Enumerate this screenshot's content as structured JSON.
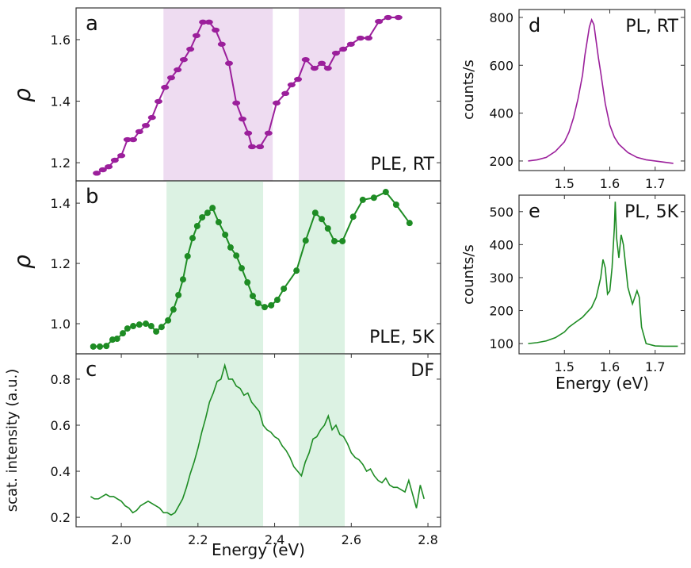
{
  "chart_data": [
    {
      "type": "line",
      "panel_label": "a",
      "annotation": "PLE, RT",
      "ylabel": "ρ",
      "markers": true,
      "color": "#9b1f9b",
      "x": [
        1.936,
        1.952,
        1.967,
        1.983,
        2.0,
        2.016,
        2.031,
        2.047,
        2.064,
        2.08,
        2.097,
        2.114,
        2.13,
        2.147,
        2.163,
        2.18,
        2.196,
        2.213,
        2.229,
        2.246,
        2.262,
        2.281,
        2.3,
        2.316,
        2.331,
        2.341,
        2.362,
        2.384,
        2.405,
        2.428,
        2.444,
        2.461,
        2.481,
        2.504,
        2.523,
        2.539,
        2.56,
        2.579,
        2.599,
        2.624,
        2.645,
        2.672,
        2.696,
        2.723
      ],
      "values": [
        1.166,
        1.177,
        1.187,
        1.208,
        1.223,
        1.275,
        1.275,
        1.301,
        1.321,
        1.347,
        1.399,
        1.445,
        1.476,
        1.502,
        1.535,
        1.569,
        1.613,
        1.657,
        1.657,
        1.631,
        1.585,
        1.523,
        1.394,
        1.342,
        1.296,
        1.252,
        1.252,
        1.296,
        1.394,
        1.425,
        1.453,
        1.471,
        1.535,
        1.507,
        1.523,
        1.507,
        1.556,
        1.569,
        1.585,
        1.605,
        1.605,
        1.659,
        1.672,
        1.672
      ],
      "xlim": [
        1.882,
        2.833
      ],
      "ylim": [
        1.141,
        1.703
      ],
      "yticks": [
        1.2,
        1.4,
        1.6
      ],
      "bands": [
        [
          2.11,
          2.395
        ],
        [
          2.463,
          2.583
        ]
      ],
      "band_color": "#eedcf1"
    },
    {
      "type": "line",
      "panel_label": "b",
      "annotation": "PLE, 5K",
      "ylabel": "ρ",
      "markers": true,
      "color": "#1e8c24",
      "x": [
        1.927,
        1.944,
        1.961,
        1.977,
        1.989,
        2.004,
        2.016,
        2.031,
        2.047,
        2.064,
        2.078,
        2.091,
        2.105,
        2.122,
        2.136,
        2.149,
        2.161,
        2.173,
        2.186,
        2.198,
        2.211,
        2.225,
        2.238,
        2.254,
        2.271,
        2.285,
        2.3,
        2.314,
        2.329,
        2.343,
        2.357,
        2.374,
        2.391,
        2.407,
        2.424,
        2.457,
        2.481,
        2.506,
        2.523,
        2.539,
        2.556,
        2.577,
        2.605,
        2.63,
        2.659,
        2.69,
        2.717,
        2.752
      ],
      "values": [
        0.924,
        0.924,
        0.926,
        0.947,
        0.95,
        0.968,
        0.984,
        0.992,
        0.997,
        1.0,
        0.992,
        0.974,
        0.989,
        1.011,
        1.047,
        1.095,
        1.147,
        1.224,
        1.284,
        1.324,
        1.353,
        1.368,
        1.384,
        1.337,
        1.295,
        1.253,
        1.226,
        1.184,
        1.137,
        1.092,
        1.068,
        1.055,
        1.061,
        1.079,
        1.116,
        1.176,
        1.276,
        1.368,
        1.347,
        1.316,
        1.274,
        1.274,
        1.355,
        1.411,
        1.418,
        1.437,
        1.395,
        1.334
      ],
      "xlim": [
        1.882,
        2.833
      ],
      "ylim": [
        0.9,
        1.474
      ],
      "yticks": [
        {
          "value": 1,
          "label": "1.0"
        },
        1.2,
        1.4
      ],
      "bands": [
        [
          2.118,
          2.37
        ],
        [
          2.463,
          2.583
        ]
      ],
      "band_color": "#dcf2e3"
    },
    {
      "type": "line",
      "panel_label": "c",
      "annotation": "DF",
      "ylabel": "scat. intensity (a.u.)",
      "xlabel": "Energy (eV)",
      "markers": false,
      "color": "#1e8c24",
      "x": [
        1.92,
        1.93,
        1.94,
        1.95,
        1.96,
        1.97,
        1.98,
        1.99,
        2.0,
        2.01,
        2.02,
        2.03,
        2.04,
        2.05,
        2.06,
        2.07,
        2.08,
        2.09,
        2.1,
        2.11,
        2.12,
        2.13,
        2.14,
        2.15,
        2.16,
        2.17,
        2.18,
        2.19,
        2.2,
        2.21,
        2.22,
        2.23,
        2.24,
        2.25,
        2.26,
        2.27,
        2.28,
        2.29,
        2.3,
        2.31,
        2.32,
        2.33,
        2.34,
        2.35,
        2.36,
        2.37,
        2.38,
        2.39,
        2.4,
        2.41,
        2.42,
        2.43,
        2.44,
        2.45,
        2.46,
        2.47,
        2.48,
        2.49,
        2.5,
        2.51,
        2.52,
        2.53,
        2.54,
        2.55,
        2.56,
        2.57,
        2.58,
        2.59,
        2.6,
        2.61,
        2.62,
        2.63,
        2.64,
        2.65,
        2.66,
        2.67,
        2.68,
        2.69,
        2.7,
        2.71,
        2.72,
        2.73,
        2.74,
        2.75,
        2.76,
        2.77,
        2.78,
        2.79
      ],
      "values": [
        0.29,
        0.28,
        0.28,
        0.29,
        0.3,
        0.29,
        0.29,
        0.28,
        0.27,
        0.25,
        0.24,
        0.22,
        0.23,
        0.25,
        0.26,
        0.27,
        0.26,
        0.25,
        0.24,
        0.22,
        0.22,
        0.21,
        0.22,
        0.25,
        0.28,
        0.33,
        0.39,
        0.44,
        0.5,
        0.57,
        0.63,
        0.7,
        0.74,
        0.79,
        0.8,
        0.86,
        0.8,
        0.8,
        0.77,
        0.76,
        0.73,
        0.74,
        0.7,
        0.68,
        0.66,
        0.6,
        0.58,
        0.57,
        0.55,
        0.54,
        0.51,
        0.49,
        0.46,
        0.42,
        0.4,
        0.38,
        0.44,
        0.48,
        0.54,
        0.55,
        0.58,
        0.6,
        0.64,
        0.58,
        0.6,
        0.56,
        0.55,
        0.52,
        0.48,
        0.46,
        0.45,
        0.43,
        0.4,
        0.41,
        0.38,
        0.36,
        0.35,
        0.37,
        0.34,
        0.33,
        0.33,
        0.32,
        0.31,
        0.36,
        0.3,
        0.24,
        0.34,
        0.28
      ],
      "xlim": [
        1.882,
        2.833
      ],
      "ylim": [
        0.159,
        0.91
      ],
      "yticks": [
        0.2,
        0.4,
        0.6,
        0.8
      ],
      "xticks": [
        {
          "value": 2,
          "label": "2.0"
        },
        2.2,
        2.4,
        2.6,
        2.8
      ],
      "bands": [
        [
          2.118,
          2.37
        ],
        [
          2.463,
          2.583
        ]
      ],
      "band_color": "#dcf2e3"
    },
    {
      "type": "line",
      "panel_label": "d",
      "annotation": "PL, RT",
      "ylabel": "counts/s",
      "markers": false,
      "color": "#9b1f9b",
      "x": [
        1.42,
        1.44,
        1.46,
        1.48,
        1.5,
        1.51,
        1.52,
        1.53,
        1.54,
        1.545,
        1.55,
        1.555,
        1.56,
        1.565,
        1.57,
        1.575,
        1.58,
        1.59,
        1.6,
        1.61,
        1.62,
        1.64,
        1.66,
        1.68,
        1.7,
        1.72,
        1.74
      ],
      "values": [
        200,
        205,
        215,
        240,
        280,
        320,
        380,
        460,
        560,
        640,
        700,
        760,
        790,
        770,
        700,
        630,
        570,
        440,
        350,
        300,
        270,
        235,
        215,
        205,
        200,
        195,
        190
      ],
      "xlim": [
        1.4,
        1.765
      ],
      "ylim": [
        160,
        833
      ],
      "yticks": [
        200,
        400,
        600,
        800
      ],
      "xticks": [
        1.5,
        1.6,
        1.7
      ]
    },
    {
      "type": "line",
      "panel_label": "e",
      "annotation": "PL, 5K",
      "ylabel": "counts/s",
      "xlabel": "Energy (eV)",
      "markers": false,
      "color": "#1e8c24",
      "x": [
        1.42,
        1.44,
        1.46,
        1.48,
        1.5,
        1.51,
        1.52,
        1.54,
        1.56,
        1.57,
        1.58,
        1.585,
        1.59,
        1.595,
        1.6,
        1.605,
        1.61,
        1.612,
        1.615,
        1.62,
        1.625,
        1.63,
        1.64,
        1.65,
        1.66,
        1.665,
        1.67,
        1.68,
        1.7,
        1.72,
        1.75
      ],
      "values": [
        100,
        103,
        108,
        118,
        135,
        150,
        160,
        180,
        210,
        240,
        300,
        355,
        330,
        250,
        260,
        330,
        450,
        530,
        420,
        360,
        430,
        400,
        270,
        220,
        260,
        240,
        150,
        100,
        93,
        92,
        92
      ],
      "xlim": [
        1.4,
        1.765
      ],
      "ylim": [
        69,
        550
      ],
      "yticks": [
        100,
        200,
        300,
        400,
        500
      ],
      "xticks": [
        1.5,
        1.6,
        1.7
      ]
    }
  ]
}
